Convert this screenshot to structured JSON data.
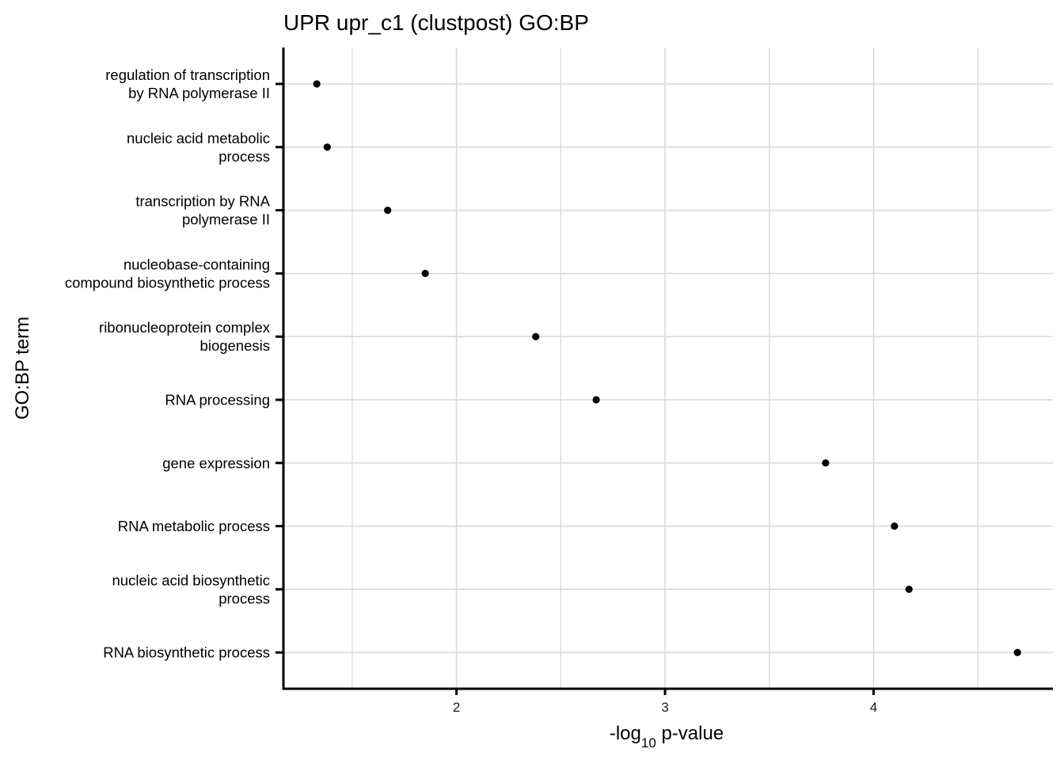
{
  "chart_data": {
    "type": "scatter",
    "title": "UPR upr_c1 (clustpost) GO:BP",
    "xlabel": {
      "prefix": "-log",
      "subscript": "10",
      "suffix": " p-value"
    },
    "ylabel": "GO:BP term",
    "xlim": [
      1.17,
      4.86
    ],
    "x_ticks": [
      2,
      3,
      4
    ],
    "x_tick_labels": [
      "2",
      "3",
      "4"
    ],
    "grid": true,
    "points": [
      {
        "term": [
          "regulation of transcription",
          "by RNA polymerase II"
        ],
        "value": 1.33
      },
      {
        "term": [
          "nucleic acid metabolic",
          "process"
        ],
        "value": 1.38
      },
      {
        "term": [
          "transcription by RNA",
          "polymerase II"
        ],
        "value": 1.67
      },
      {
        "term": [
          "nucleobase-containing",
          "compound biosynthetic process"
        ],
        "value": 1.85
      },
      {
        "term": [
          "ribonucleoprotein complex",
          "biogenesis"
        ],
        "value": 2.38
      },
      {
        "term": [
          "RNA processing"
        ],
        "value": 2.67
      },
      {
        "term": [
          "gene expression"
        ],
        "value": 3.77
      },
      {
        "term": [
          "RNA metabolic process"
        ],
        "value": 4.1
      },
      {
        "term": [
          "nucleic acid biosynthetic",
          "process"
        ],
        "value": 4.17
      },
      {
        "term": [
          "RNA biosynthetic process"
        ],
        "value": 4.69
      }
    ]
  }
}
